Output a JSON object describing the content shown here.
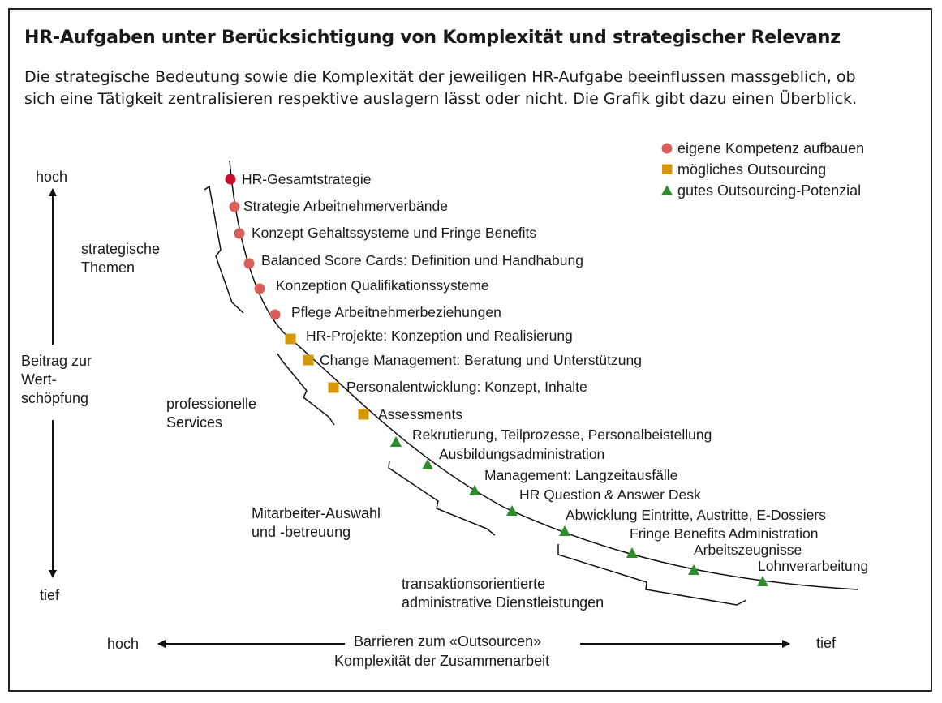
{
  "title": "HR-Aufgaben unter Berücksichtigung von Komplexität und strategischer Relevanz",
  "subtitle_line1": "Die strategische Bedeutung sowie die Komplexität der jeweiligen HR-Aufgabe beeinflussen massgeblich, ob",
  "subtitle_line2": "sich eine Tätigkeit zentralisieren respektive auslagern lässt oder nicht. Die Grafik gibt dazu einen Überblick.",
  "legend": [
    {
      "label": "eigene Kompetenz aufbauen",
      "shape": "circle",
      "color": "#d9605a"
    },
    {
      "label": "mögliches Outsourcing",
      "shape": "square",
      "color": "#d4980a"
    },
    {
      "label": "gutes Outsourcing-Potenzial",
      "shape": "triangle",
      "color": "#2e8b2e"
    }
  ],
  "y_axis": {
    "top": "hoch",
    "middle_line1": "Beitrag zur",
    "middle_line2": "Wert-",
    "middle_line3": "schöpfung",
    "bottom": "tief"
  },
  "x_axis": {
    "left": "hoch",
    "right": "tief",
    "line1": "Barrieren zum «Outsourcen»",
    "line2": "Komplexität der Zusammenarbeit"
  },
  "groups": {
    "strategic_line1": "strategische",
    "strategic_line2": "Themen",
    "professional_line1": "professionelle",
    "professional_line2": "Services",
    "employee_line1": "Mitarbeiter-Auswahl",
    "employee_line2": "und -betreuung",
    "admin_line1": "transaktionsorientierte",
    "admin_line2": "administrative Dienstleistungen"
  },
  "tasks": [
    {
      "label": "HR-Gesamtstrategie",
      "category": "eigene Kompetenz aufbauen",
      "highlight": "#c8102e"
    },
    {
      "label": "Strategie Arbeitnehmerverbände",
      "category": "eigene Kompetenz aufbauen"
    },
    {
      "label": "Konzept Gehaltssysteme und Fringe Benefits",
      "category": "eigene Kompetenz aufbauen"
    },
    {
      "label": "Balanced Score Cards: Definition und Handhabung",
      "category": "eigene Kompetenz aufbauen"
    },
    {
      "label": "Konzeption Qualifikationssysteme",
      "category": "eigene Kompetenz aufbauen"
    },
    {
      "label": "Pflege Arbeitnehmerbeziehungen",
      "category": "eigene Kompetenz aufbauen"
    },
    {
      "label": "HR-Projekte: Konzeption und Realisierung",
      "category": "mögliches Outsourcing"
    },
    {
      "label": "Change Management: Beratung und Unterstützung",
      "category": "mögliches Outsourcing"
    },
    {
      "label": "Personalentwicklung: Konzept, Inhalte",
      "category": "mögliches Outsourcing"
    },
    {
      "label": "Assessments",
      "category": "mögliches Outsourcing"
    },
    {
      "label": "Rekrutierung, Teilprozesse, Personalbeistellung",
      "category": "gutes Outsourcing-Potenzial"
    },
    {
      "label": "Ausbildungsadministration",
      "category": "gutes Outsourcing-Potenzial"
    },
    {
      "label": "Management: Langzeitausfälle",
      "category": "gutes Outsourcing-Potenzial"
    },
    {
      "label": "HR Question & Answer Desk",
      "category": "gutes Outsourcing-Potenzial"
    },
    {
      "label": "Abwicklung Eintritte, Austritte, E-Dossiers",
      "category": "gutes Outsourcing-Potenzial"
    },
    {
      "label": "Fringe Benefits Administration",
      "category": "gutes Outsourcing-Potenzial"
    },
    {
      "label": "Arbeitszeugnisse",
      "category": "gutes Outsourcing-Potenzial"
    },
    {
      "label": "Lohnverarbeitung",
      "category": "gutes Outsourcing-Potenzial"
    }
  ]
}
